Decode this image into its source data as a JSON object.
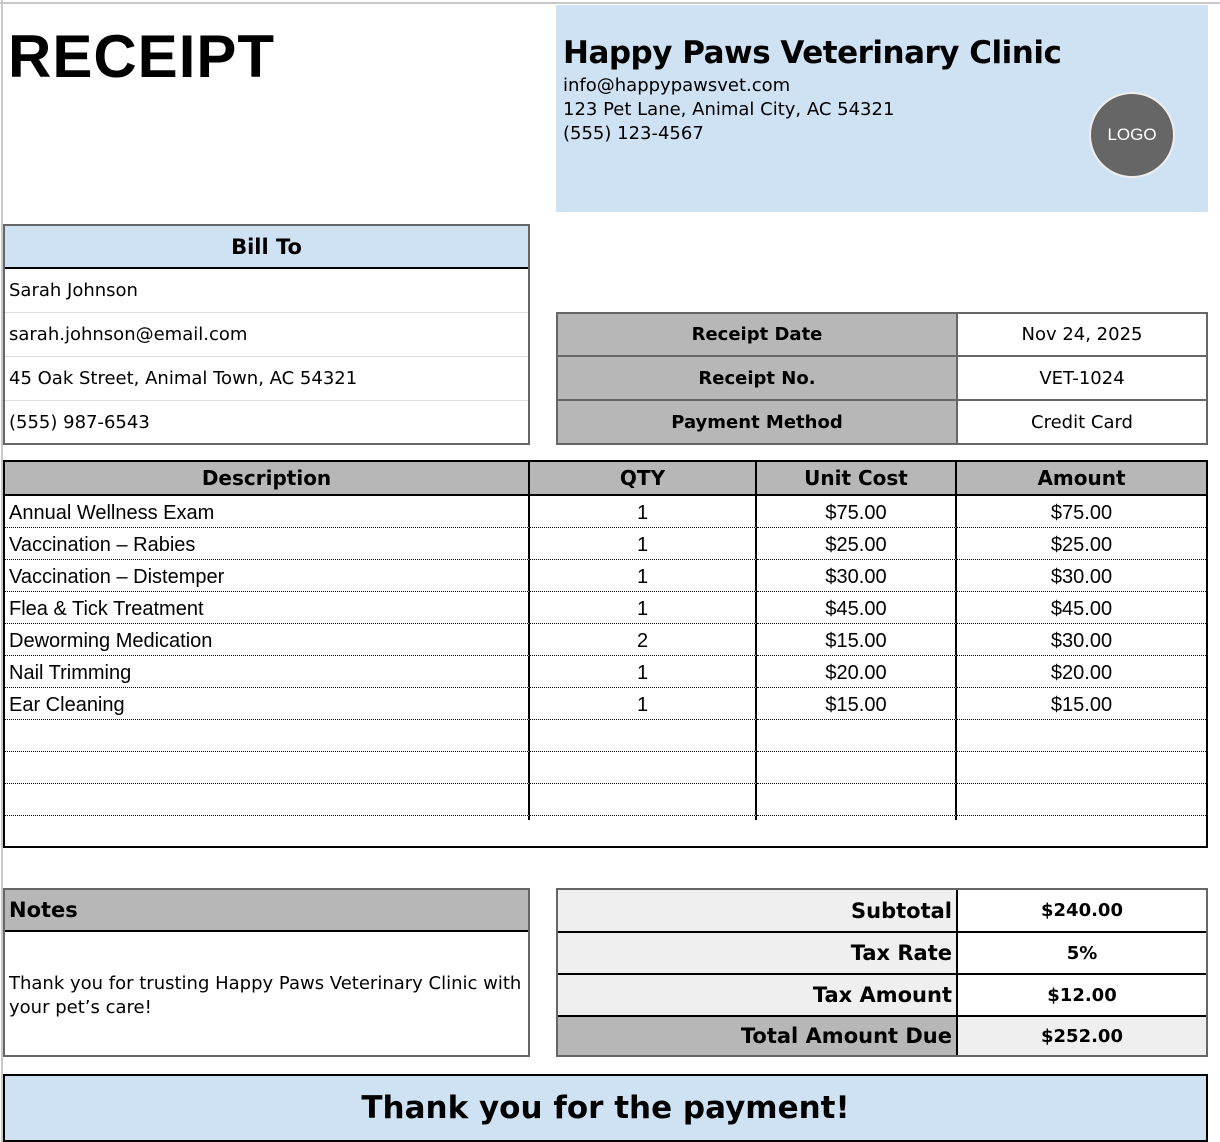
{
  "title": "RECEIPT",
  "clinic": {
    "name": "Happy Paws Veterinary Clinic",
    "email": "info@happypawsvet.com",
    "address": "123 Pet Lane, Animal City, AC 54321",
    "phone": "(555) 123-4567",
    "logo": "LOGO"
  },
  "bill_to": {
    "header": "Bill To",
    "lines": [
      "Sarah Johnson",
      "sarah.johnson@email.com",
      "45 Oak Street, Animal Town, AC 54321",
      "(555) 987-6543"
    ]
  },
  "receipt_info": [
    {
      "label": "Receipt Date",
      "value": "Nov 24, 2025"
    },
    {
      "label": "Receipt No.",
      "value": "VET-1024"
    },
    {
      "label": "Payment Method",
      "value": "Credit Card"
    }
  ],
  "items": {
    "headers": [
      "Description",
      "QTY",
      "Unit Cost",
      "Amount"
    ],
    "rows": [
      [
        "Annual Wellness Exam",
        "1",
        "$75.00",
        "$75.00"
      ],
      [
        "Vaccination – Rabies",
        "1",
        "$25.00",
        "$25.00"
      ],
      [
        "Vaccination – Distemper",
        "1",
        "$30.00",
        "$30.00"
      ],
      [
        "Flea & Tick Treatment",
        "1",
        "$45.00",
        "$45.00"
      ],
      [
        "Deworming Medication",
        "2",
        "$15.00",
        "$30.00"
      ],
      [
        "Nail Trimming",
        "1",
        "$20.00",
        "$20.00"
      ],
      [
        "Ear Cleaning",
        "1",
        "$15.00",
        "$15.00"
      ]
    ],
    "empty_rows": 4
  },
  "notes": {
    "header": "Notes",
    "text": "Thank you for trusting Happy Paws Veterinary Clinic with your pet’s care!"
  },
  "totals": [
    {
      "label": "Subtotal",
      "value": "$240.00"
    },
    {
      "label": "Tax Rate",
      "value": "5%"
    },
    {
      "label": "Tax Amount",
      "value": "$12.00"
    },
    {
      "label": "Total Amount Due",
      "value": "$252.00"
    }
  ],
  "footer": "Thank you for the payment!",
  "colors": {
    "header_blue": "#cfe2f3",
    "label_gray": "#b7b7b7",
    "light_gray": "#efefef",
    "logo": "#666666"
  }
}
